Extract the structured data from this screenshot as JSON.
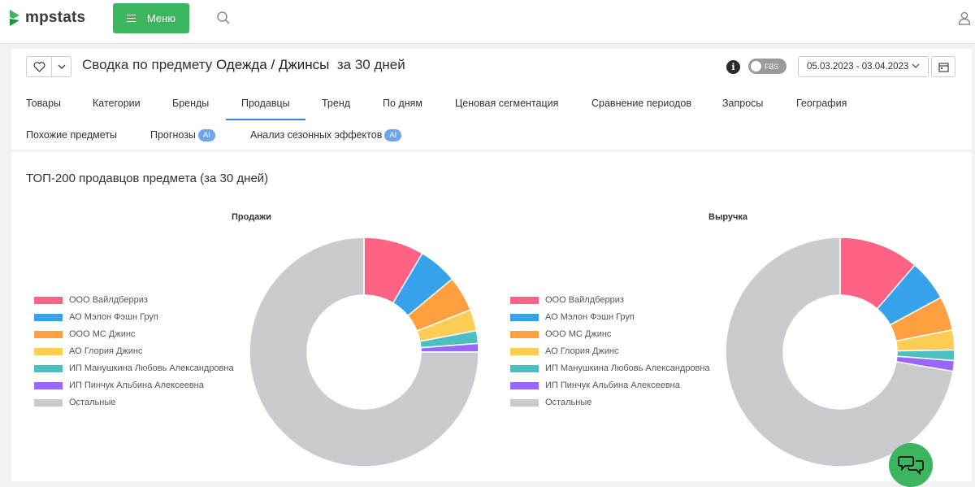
{
  "header": {
    "logo_text": "mpstats",
    "menu_label": "Меню",
    "icons": [
      "logo-icon",
      "menu-icon",
      "search-icon",
      "user-icon"
    ]
  },
  "page": {
    "title_prefix": "Сводка по предмету",
    "subject": "Одежда / Джинсы",
    "period": "за 30 дней",
    "fbs_label": "FBS",
    "date_range": "05.03.2023 - 03.04.2023",
    "icons": [
      "heart-icon",
      "chevron-down-icon",
      "info-icon",
      "calendar-icon"
    ]
  },
  "tabs": [
    {
      "label": "Товары"
    },
    {
      "label": "Категории"
    },
    {
      "label": "Бренды"
    },
    {
      "label": "Продавцы",
      "active": true
    },
    {
      "label": "Тренд"
    },
    {
      "label": "По дням"
    },
    {
      "label": "Ценовая сегментация"
    },
    {
      "label": "Сравнение периодов"
    },
    {
      "label": "Запросы"
    },
    {
      "label": "География"
    },
    {
      "label": "Похожие предметы"
    },
    {
      "label": "Прогнозы",
      "badge": "AI"
    },
    {
      "label": "Анализ сезонных эффектов",
      "badge": "AI"
    }
  ],
  "section_title": "ТОП-200 продавцов предмета (за 30 дней)",
  "colors": [
    "#ff6384",
    "#36a2eb",
    "#ff9f40",
    "#ffcd56",
    "#4bc0c0",
    "#9966ff",
    "#c9cbcf"
  ],
  "chart_data": [
    {
      "type": "pie",
      "title": "Продажи",
      "categories": [
        "ООО Вайлдберриз",
        "АО Мэлон Фэшн Груп",
        "ООО МС Джинс",
        "АО Глория Джинс",
        "ИП Манушкина Любовь Александровна",
        "ИП Пинчук Альбина Алексеевна",
        "Остальные"
      ],
      "values": [
        8.5,
        5.5,
        5.0,
        3.0,
        1.8,
        1.2,
        75.0
      ],
      "legend": "left"
    },
    {
      "type": "pie",
      "title": "Выручка",
      "categories": [
        "ООО Вайлдберриз",
        "АО Мэлон Фэшн Груп",
        "ООО МС Джинс",
        "АО Глория Джинс",
        "ИП Манушкина Любовь Александровна",
        "ИП Пинчук Альбина Алексеевна",
        "Остальные"
      ],
      "values": [
        11.3,
        5.8,
        4.8,
        2.8,
        1.5,
        1.5,
        72.3
      ],
      "legend": "left"
    }
  ]
}
